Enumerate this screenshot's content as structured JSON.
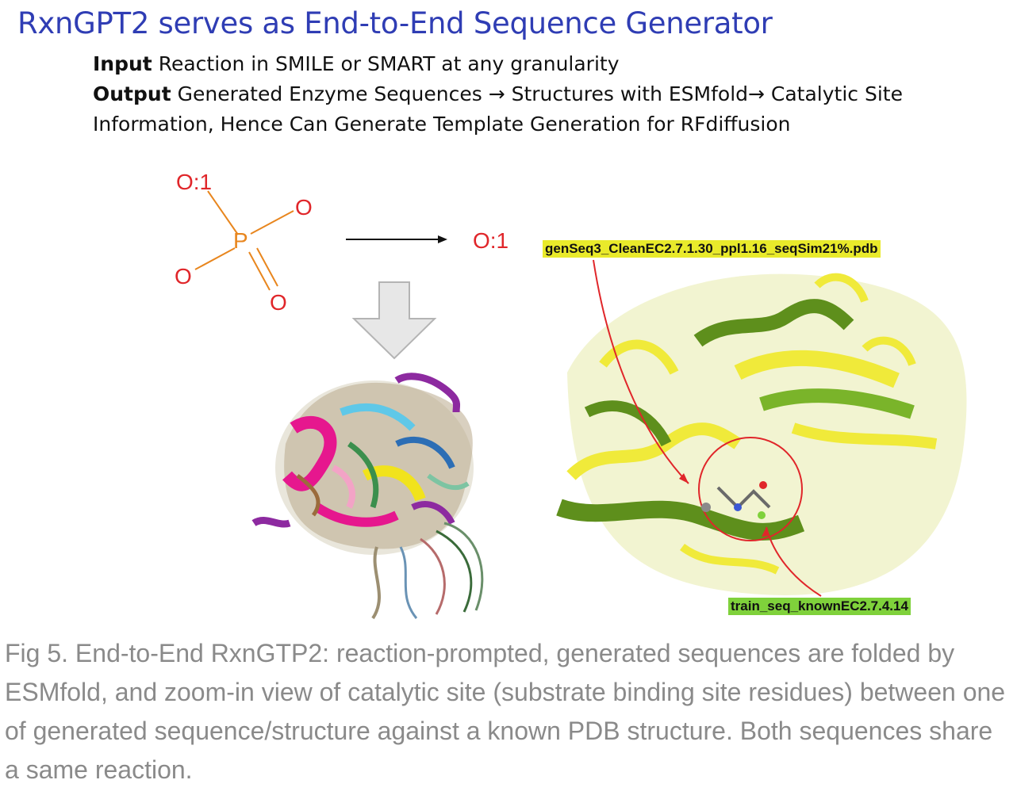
{
  "title": "RxnGPT2 serves as End-to-End Sequence Generator",
  "input": {
    "label": "Input",
    "text": "Reaction in SMILE or SMART at any granularity"
  },
  "output": {
    "label": "Output",
    "text_line1": "Generated Enzyme Sequences → Structures with ESMfold→ Catalytic Site",
    "text_line2": "Information, Hence Can Generate Template Generation for RFdiffusion"
  },
  "molecule": {
    "center_atom": "P",
    "atom_top": "O:1",
    "atom_right": "O",
    "atom_left": "O",
    "atom_bottom": "O",
    "product": "O:1"
  },
  "structure_labels": {
    "generated": "genSeq3_CleanEC2.7.1.30_ppl1.16_seqSim21%.pdb",
    "training": "train_seq_knownEC2.7.4.14"
  },
  "caption": "Fig 5. End-to-End RxnGTP2: reaction-prompted, generated sequences are folded by ESMfold, and zoom-in view of catalytic site (substrate binding site residues) between one of generated sequence/structure against a known PDB structure.  Both sequences share a same reaction.",
  "colors": {
    "title": "#2f3db4",
    "oxygen": "#e0262a",
    "phosphorus": "#e8861e",
    "generated_label_bg": "#e9ea2b",
    "training_label_bg": "#7fd13b",
    "caption": "#8a8a8a"
  }
}
